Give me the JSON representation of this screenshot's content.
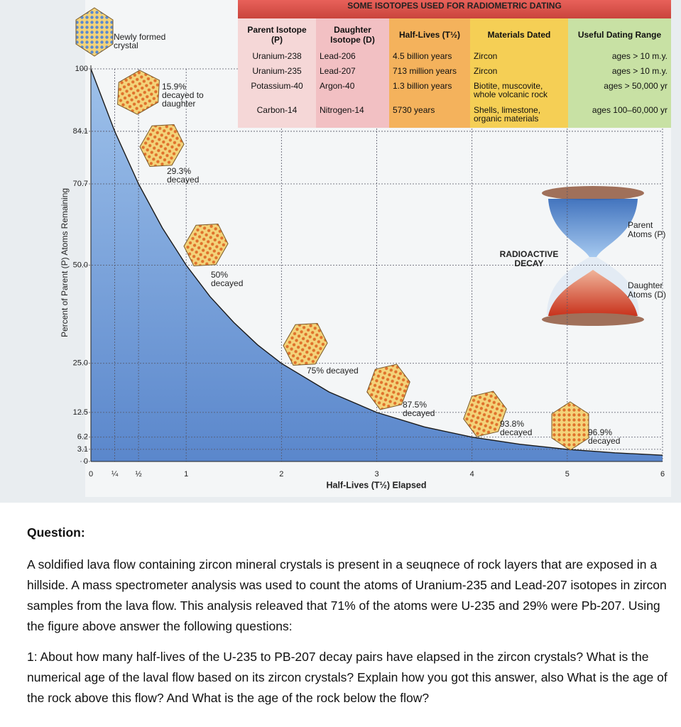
{
  "chart_data": {
    "type": "line",
    "y_label": "Percent of Parent (P) Atoms Remaining",
    "x_label": "Half-Lives (T½) Elapsed",
    "x": [
      0,
      0.25,
      0.5,
      0.75,
      1,
      1.25,
      1.5,
      1.75,
      2,
      2.5,
      3,
      3.5,
      4,
      4.5,
      5,
      5.5,
      6
    ],
    "values": [
      100,
      84.1,
      70.7,
      59.5,
      50,
      42,
      35.4,
      29.7,
      25,
      17.7,
      12.5,
      8.8,
      6.2,
      4.4,
      3.1,
      2.2,
      1.6
    ],
    "color": "#6b9fd9",
    "xlim": [
      0,
      6
    ],
    "ylim": [
      0,
      100
    ],
    "xticks": [
      0,
      {
        "value": 0.25,
        "label": "¼"
      },
      {
        "value": 0.5,
        "label": "½"
      },
      1,
      2,
      3,
      4,
      5,
      6
    ],
    "yticks": [
      0,
      3.1,
      6.2,
      12.5,
      {
        "value": 25,
        "label": "25.0"
      },
      {
        "value": 50,
        "label": "50.0"
      },
      70.7,
      84.1,
      100
    ],
    "grid": true,
    "annotations": [
      "Newly formed crystal",
      "15.9% decayed to daughter",
      "29.3% decayed",
      "50% decayed",
      "75% decayed",
      "87.5% decayed",
      "93.8% decayed",
      "96.9% decayed"
    ]
  },
  "table": {
    "title": "SOME ISOTOPES USED FOR RADIOMETRIC DATING",
    "headers": [
      "Parent Isotope (P)",
      "Daughter Isotope (D)",
      "Half-Lives (T½)",
      "Materials Dated",
      "Useful Dating Range"
    ],
    "rows": [
      [
        "Uranium-238",
        "Lead-206",
        "4.5 billion years",
        "Zircon",
        "ages > 10 m.y."
      ],
      [
        "Uranium-235",
        "Lead-207",
        "713 million years",
        "Zircon",
        "ages > 10 m.y."
      ],
      [
        "Potassium-40",
        "Argon-40",
        "1.3 billion years",
        "Biotite, muscovite, whole volcanic rock",
        "ages > 50,000 yr"
      ],
      [
        "Carbon-14",
        "Nitrogen-14",
        "5730 years",
        "Shells, limestone, organic materials",
        "ages 100–60,000 yr"
      ]
    ]
  },
  "hourglass": {
    "title": "RADIOACTIVE DECAY",
    "top_label": "Parent Atoms (P)",
    "bottom_label": "Daughter Atoms (D)"
  },
  "question": {
    "heading": "Question:",
    "text": "A soldified lava flow containing zircon mineral crystals is present in a seuqnece of rock layers that are exposed in a hillside.  A mass spectrometer analysis was used to count the atoms of Uranium-235 and Lead-207 isotopes in zircon samples from the lava flow.  This analysis releaved that 71% of the atoms were U-235 and 29% were Pb-207.  Using the figure above answer the following questions:",
    "item": "1: About how many half-lives of the U-235 to PB-207 decay pairs have elapsed in the zircon crystals? What is the numerical age of the laval flow based on its zircon crystals?  Explain how you got this answer, also What is the age of the rock above this flow? And What is the age of the rock below the flow?"
  }
}
